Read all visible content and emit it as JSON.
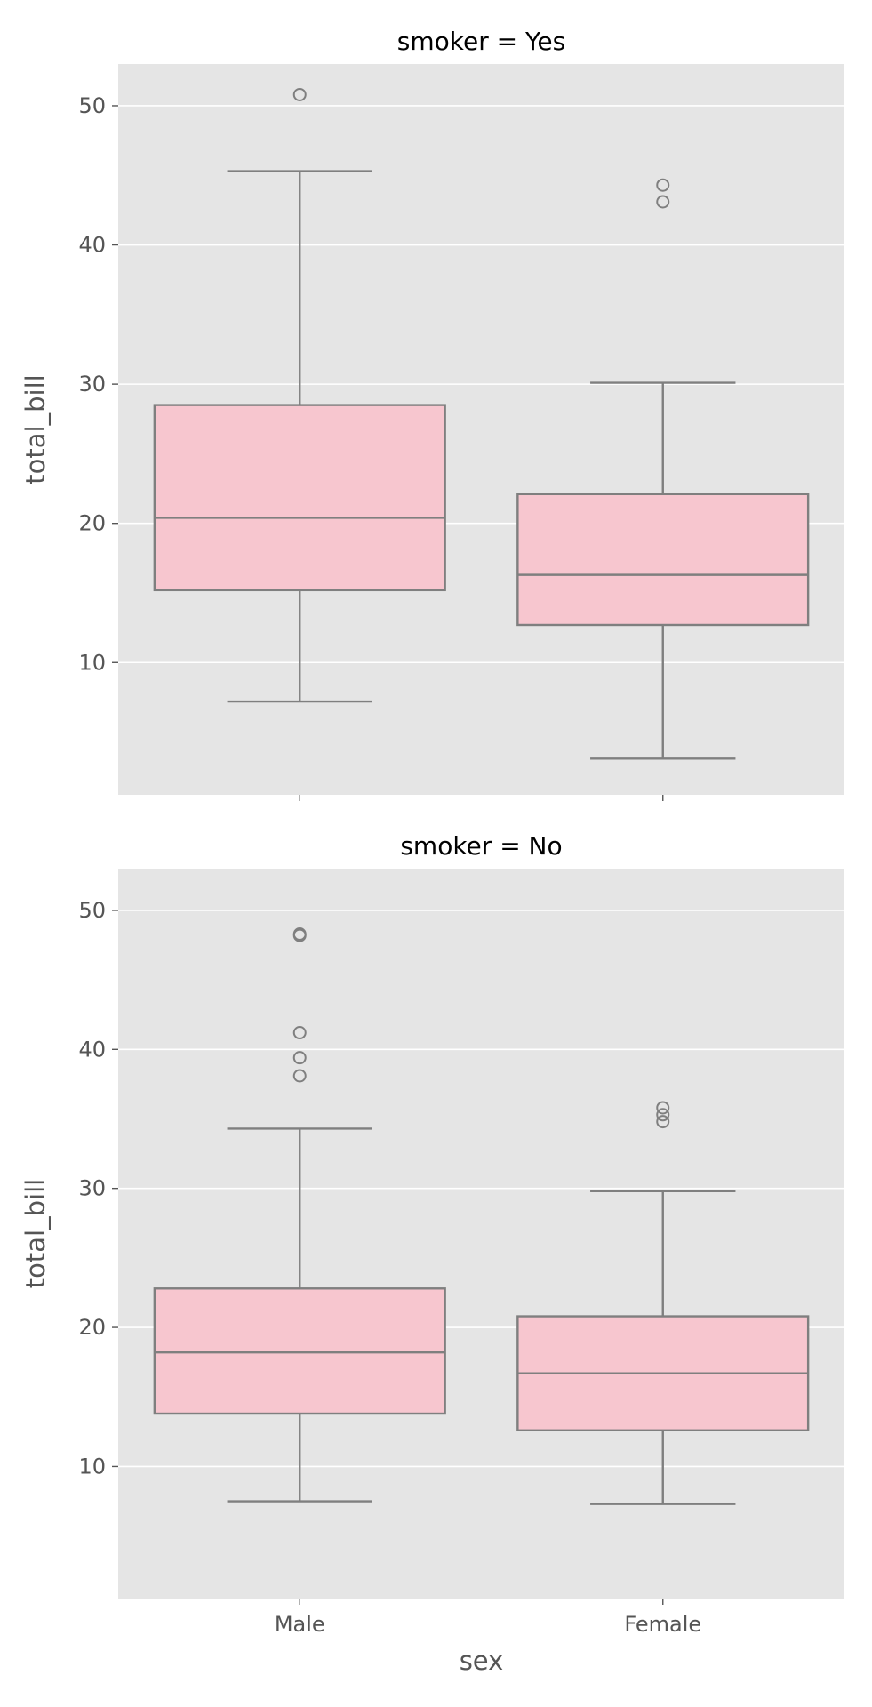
{
  "chart_data": [
    {
      "type": "boxplot",
      "title": "smoker = Yes",
      "xlabel": "",
      "ylabel": "total_bill",
      "categories": [
        "Male",
        "Female"
      ],
      "show_x_tick_labels": false,
      "ylim": [
        0.5,
        53.0
      ],
      "yticks": [
        10,
        20,
        30,
        40,
        50
      ],
      "grid": true,
      "boxes": [
        {
          "category": "Male",
          "whisker_low": 7.2,
          "q1": 15.2,
          "median": 20.4,
          "q3": 28.5,
          "whisker_high": 45.3,
          "outliers": [
            50.8
          ]
        },
        {
          "category": "Female",
          "whisker_low": 3.1,
          "q1": 12.7,
          "median": 16.3,
          "q3": 22.1,
          "whisker_high": 30.1,
          "outliers": [
            44.3,
            43.1
          ]
        }
      ]
    },
    {
      "type": "boxplot",
      "title": "smoker = No",
      "xlabel": "sex",
      "ylabel": "total_bill",
      "categories": [
        "Male",
        "Female"
      ],
      "show_x_tick_labels": true,
      "ylim": [
        0.5,
        53.0
      ],
      "yticks": [
        10,
        20,
        30,
        40,
        50
      ],
      "grid": true,
      "boxes": [
        {
          "category": "Male",
          "whisker_low": 7.5,
          "q1": 13.8,
          "median": 18.2,
          "q3": 22.8,
          "whisker_high": 34.3,
          "outliers": [
            48.3,
            48.2,
            41.2,
            39.4,
            38.1
          ]
        },
        {
          "category": "Female",
          "whisker_low": 7.3,
          "q1": 12.6,
          "median": 16.7,
          "q3": 20.8,
          "whisker_high": 29.8,
          "outliers": [
            35.8,
            35.3,
            34.8
          ]
        }
      ]
    }
  ],
  "colors": {
    "panel_bg": "#e5e5e5",
    "grid": "#ffffff",
    "box_fill": "#f7c6cf",
    "box_line": "#7f7f7f"
  }
}
